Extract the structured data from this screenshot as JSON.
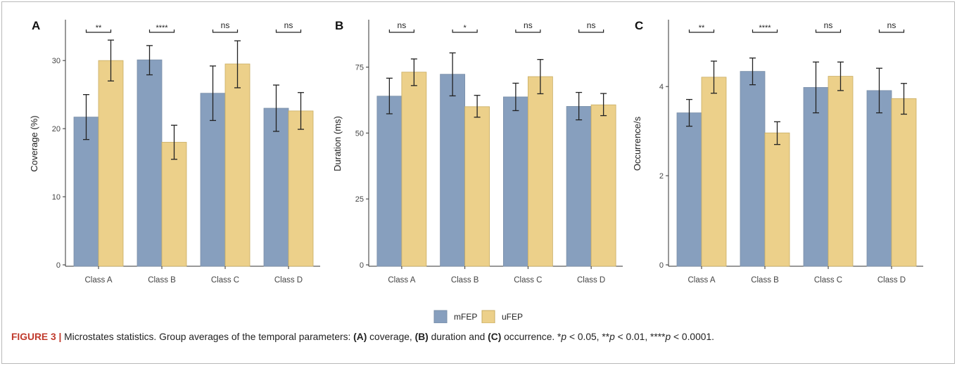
{
  "chart_data": [
    {
      "type": "bar",
      "panel_label": "A",
      "ylabel": "Coverage (%)",
      "ylim": [
        0,
        36
      ],
      "yticks": [
        0,
        10,
        20,
        30
      ],
      "categories": [
        "Class A",
        "Class B",
        "Class C",
        "Class D"
      ],
      "series": [
        {
          "name": "mFEP",
          "values": [
            21.7,
            30.1,
            25.2,
            23.0
          ],
          "err_low": [
            18.4,
            27.9,
            21.2,
            19.6
          ],
          "err_high": [
            25.0,
            32.2,
            29.2,
            26.4
          ]
        },
        {
          "name": "uFEP",
          "values": [
            30.0,
            18.0,
            29.5,
            22.6
          ],
          "err_low": [
            27.0,
            15.5,
            26.0,
            19.9
          ],
          "err_high": [
            33.0,
            20.5,
            32.9,
            25.3
          ]
        }
      ],
      "significance": [
        "**",
        "****",
        "ns",
        "ns"
      ]
    },
    {
      "type": "bar",
      "panel_label": "B",
      "ylabel": "Duration (ms)",
      "ylim": [
        0,
        93
      ],
      "yticks": [
        0,
        25,
        50,
        75
      ],
      "categories": [
        "Class A",
        "Class B",
        "Class C",
        "Class D"
      ],
      "series": [
        {
          "name": "mFEP",
          "values": [
            64.0,
            72.3,
            63.7,
            60.1
          ],
          "err_low": [
            57.3,
            64.1,
            58.5,
            55.0
          ],
          "err_high": [
            70.8,
            80.4,
            68.9,
            65.4
          ]
        },
        {
          "name": "uFEP",
          "values": [
            73.1,
            60.0,
            71.4,
            60.7
          ],
          "err_low": [
            68.0,
            56.0,
            64.9,
            56.6
          ],
          "err_high": [
            78.1,
            64.3,
            77.9,
            65.0
          ]
        }
      ],
      "significance": [
        "ns",
        "*",
        "ns",
        "ns"
      ]
    },
    {
      "type": "bar",
      "panel_label": "C",
      "ylabel": "Occurrence/s",
      "ylim": [
        0,
        5.5
      ],
      "yticks": [
        0,
        2,
        4
      ],
      "categories": [
        "Class A",
        "Class B",
        "Class C",
        "Class D"
      ],
      "series": [
        {
          "name": "mFEP",
          "values": [
            3.41,
            4.34,
            3.98,
            3.91
          ],
          "err_low": [
            3.11,
            4.04,
            3.41,
            3.41
          ],
          "err_high": [
            3.71,
            4.64,
            4.55,
            4.41
          ]
        },
        {
          "name": "uFEP",
          "values": [
            4.21,
            2.96,
            4.23,
            3.73
          ],
          "err_low": [
            3.85,
            2.7,
            3.91,
            3.38
          ],
          "err_high": [
            4.57,
            3.21,
            4.55,
            4.07
          ]
        }
      ],
      "significance": [
        "**",
        "****",
        "ns",
        "ns"
      ]
    }
  ],
  "legend": [
    {
      "name": "mFEP",
      "color": "#879fbe"
    },
    {
      "name": "uFEP",
      "color": "#ecd08a"
    }
  ],
  "colors": {
    "mFEP": "#879fbe",
    "uFEP": "#ecd08a",
    "caption_label": "#c0392b"
  },
  "caption": {
    "figure_label": "FIGURE 3 |",
    "t1": " Microstates statistics. Group averages of the temporal parameters: ",
    "a": "(A)",
    "t2": " coverage, ",
    "b": "(B)",
    "t3": " duration and ",
    "c": "(C)",
    "t4": " occurrence. *",
    "p1": "p",
    "t5": " < 0.05, **",
    "p2": "p",
    "t6": " < 0.01, ****",
    "p3": "p",
    "t7": " < 0.0001."
  }
}
